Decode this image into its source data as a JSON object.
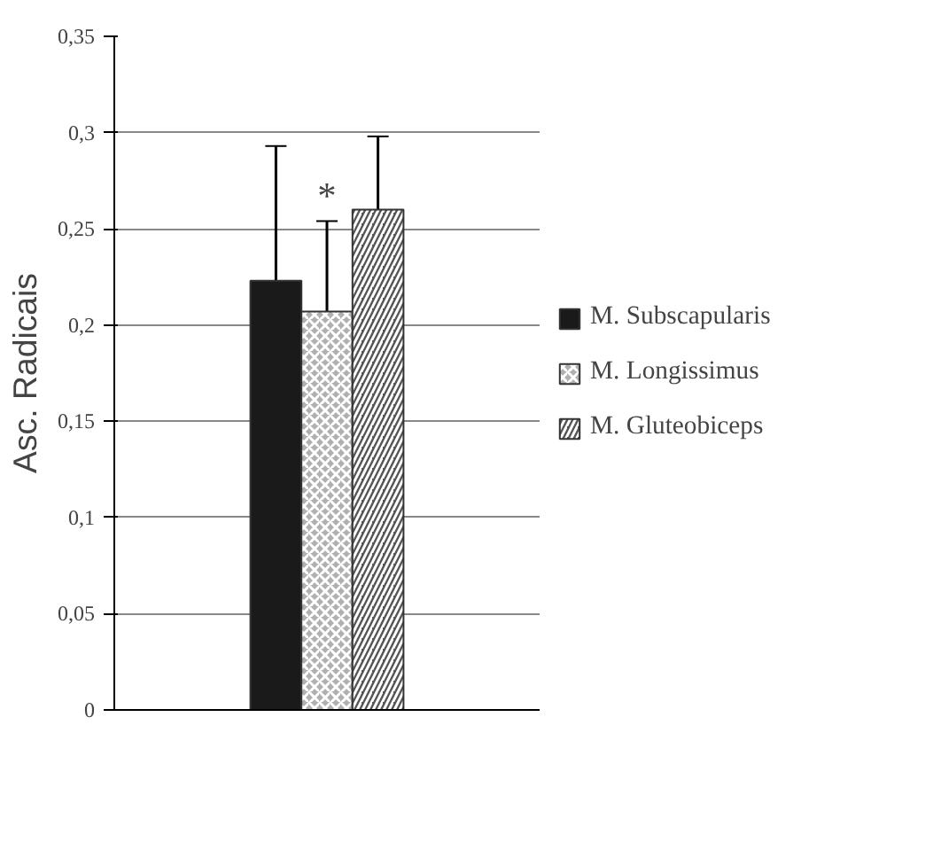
{
  "chart_data": {
    "type": "bar",
    "ylabel": "Asc. Radicais",
    "categories": [
      null
    ],
    "series": [
      {
        "name": "M. Subscapularis",
        "color": "#1a1a1a",
        "values": [
          0.223
        ],
        "errors": [
          0.07
        ]
      },
      {
        "name": "M. Longissimus",
        "color": "#b0b0b0",
        "values": [
          0.207
        ],
        "errors": [
          0.047
        ]
      },
      {
        "name": "M. Gluteobiceps",
        "color": "#555555",
        "values": [
          0.26
        ],
        "errors": [
          0.038
        ]
      }
    ],
    "annotations": [
      "*"
    ],
    "ylim": [
      0,
      0.35
    ],
    "yticks": [
      0,
      {
        "value": 0.05,
        "label": "0,05"
      },
      {
        "value": 0.1,
        "label": "0,1"
      },
      {
        "value": 0.15,
        "label": "0,15"
      },
      {
        "value": 0.2,
        "label": "0,2"
      },
      {
        "value": 0.25,
        "label": "0,25"
      },
      {
        "value": 0.3,
        "label": "0,3"
      },
      {
        "value": 0.35,
        "label": "0,35"
      }
    ],
    "grid": "y",
    "legend": "right"
  }
}
